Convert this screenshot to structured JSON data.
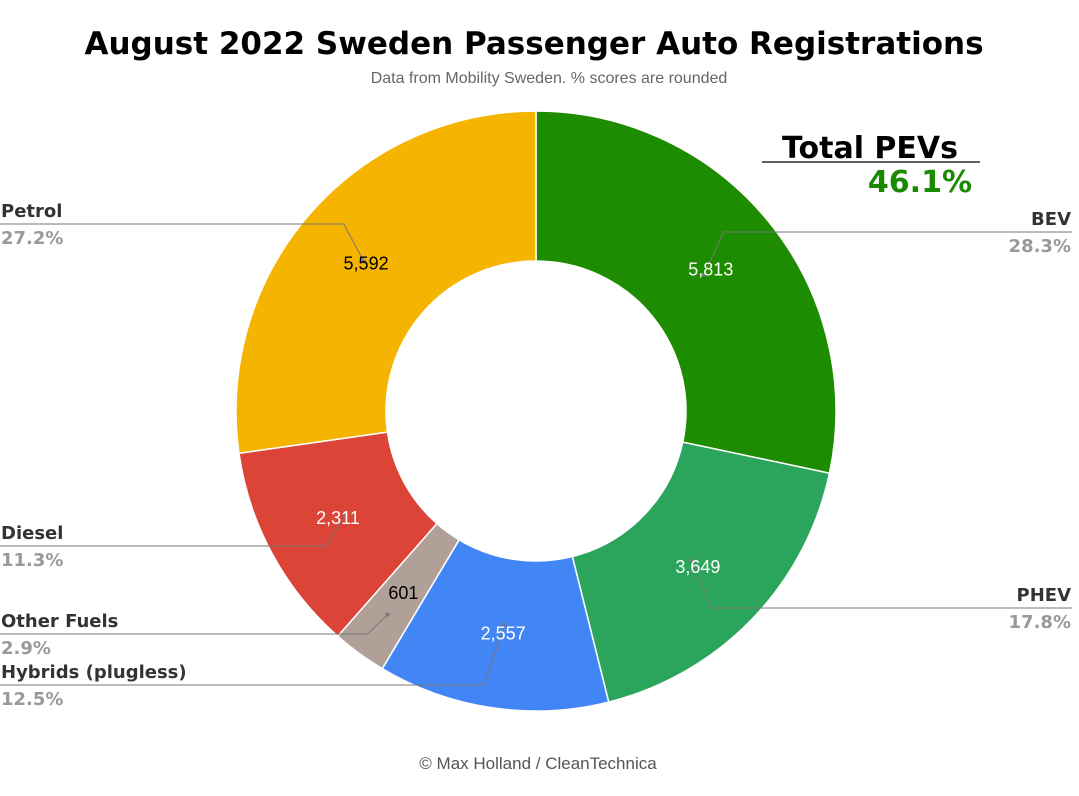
{
  "chart_data": {
    "type": "pie",
    "title": "August 2022 Sweden Passenger Auto Registrations",
    "subtitle": "Data from Mobility Sweden. % scores are rounded",
    "footer": "© Max Holland / CleanTechnica",
    "callout": {
      "title": "Total PEVs",
      "value": "46.1%"
    },
    "slices": [
      {
        "name": "BEV",
        "value": 5813,
        "value_label": "5,813",
        "percent_label": "28.3%",
        "color": "#1e8c00",
        "value_color": "#ffffff"
      },
      {
        "name": "PHEV",
        "value": 3649,
        "value_label": "3,649",
        "percent_label": "17.8%",
        "color": "#2ba55c",
        "value_color": "#ffffff"
      },
      {
        "name": "Hybrids (plugless)",
        "value": 2557,
        "value_label": "2,557",
        "percent_label": "12.5%",
        "color": "#4285f4",
        "value_color": "#ffffff"
      },
      {
        "name": "Other Fuels",
        "value": 601,
        "value_label": "601",
        "percent_label": "2.9%",
        "color": "#b0a098",
        "value_color": "#000000"
      },
      {
        "name": "Diesel",
        "value": 2311,
        "value_label": "2,311",
        "percent_label": "11.3%",
        "color": "#db4437",
        "value_color": "#ffffff"
      },
      {
        "name": "Petrol",
        "value": 5592,
        "value_label": "5,592",
        "percent_label": "27.2%",
        "color": "#f4b400",
        "value_color": "#000000"
      }
    ]
  }
}
